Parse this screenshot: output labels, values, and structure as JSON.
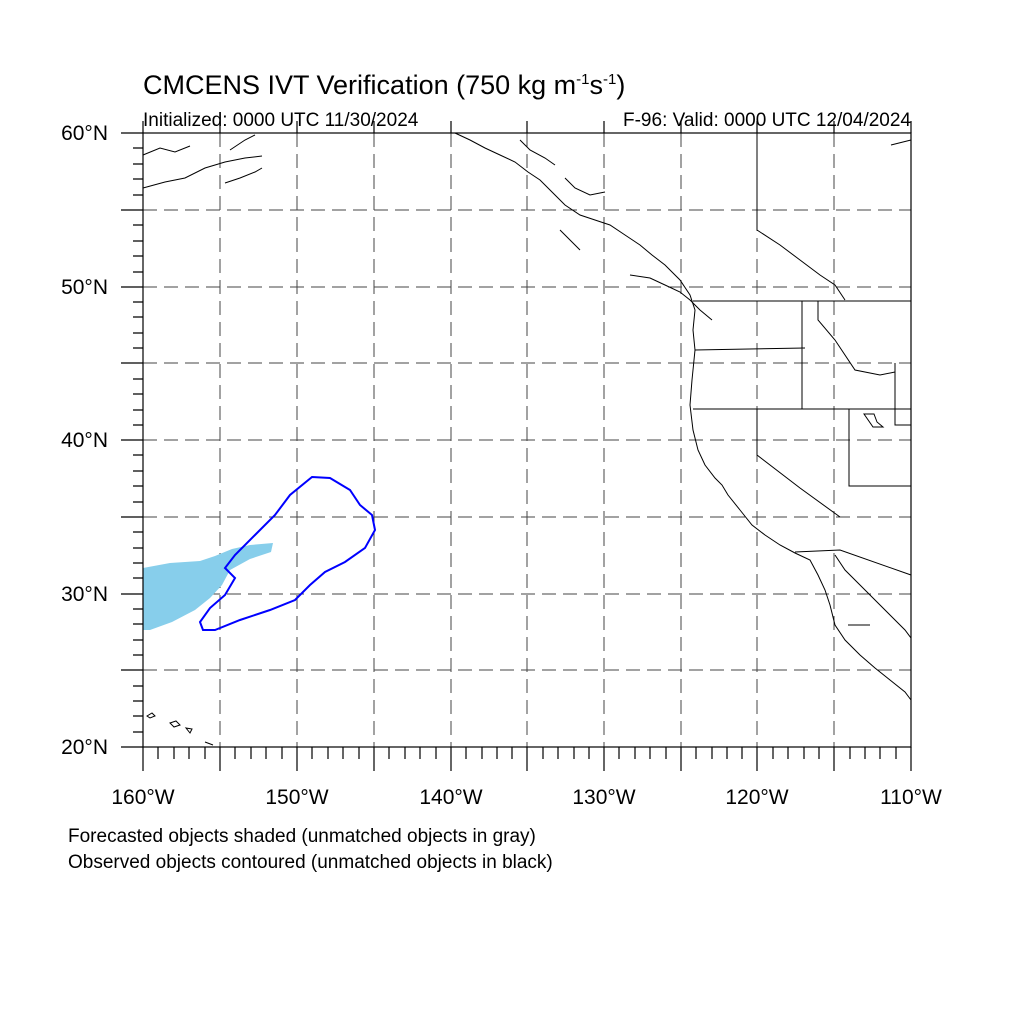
{
  "title": {
    "main": "CMCENS IVT Verification (750 kg m",
    "exp1": "-1",
    "mid": "s",
    "exp2": "-1",
    "end": ")"
  },
  "subtitle": {
    "left": "Initialized: 0000 UTC 11/30/2024",
    "right": "F-96: Valid: 0000 UTC 12/04/2024"
  },
  "map": {
    "lat_labels": [
      "60°N",
      "50°N",
      "40°N",
      "30°N",
      "20°N"
    ],
    "lon_labels": [
      "160°W",
      "150°W",
      "140°W",
      "130°W",
      "120°W",
      "110°W"
    ],
    "extent": {
      "lon": [
        -160,
        -110
      ],
      "lat": [
        20,
        60
      ]
    },
    "gridlines": "dashed, every 5 degrees",
    "colors": {
      "forecast_fill": "#87ceeb",
      "observed_contour": "#0000ff",
      "coastline": "#000000"
    }
  },
  "legend": {
    "line1": "Forecasted objects shaded (unmatched objects in gray)",
    "line2": "Observed objects contoured (unmatched objects in black)"
  }
}
